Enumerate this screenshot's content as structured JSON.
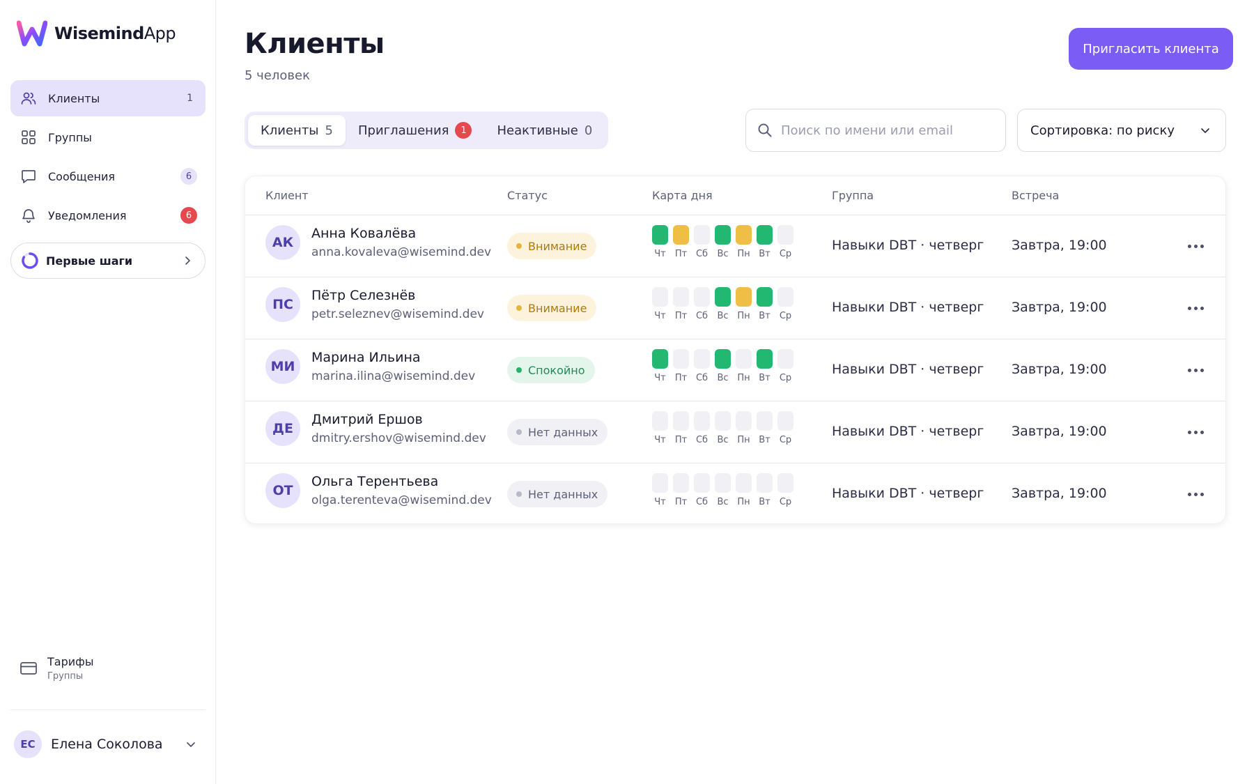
{
  "app": {
    "name_bold": "Wisemind",
    "name_light": "App"
  },
  "sidebar": {
    "items": [
      {
        "label": "Клиенты",
        "count": "1",
        "icon": "users-icon",
        "active": true
      },
      {
        "label": "Группы",
        "icon": "grid-icon"
      },
      {
        "label": "Сообщения",
        "badge": "6",
        "badge_style": "soft",
        "icon": "chat-icon"
      },
      {
        "label": "Уведомления",
        "badge": "6",
        "badge_style": "red",
        "icon": "bell-icon"
      }
    ],
    "first_steps": "Первые шаги",
    "tariffs": {
      "title": "Тарифы",
      "subtitle": "Группы"
    },
    "user": {
      "initials": "ЕС",
      "name": "Елена Соколова"
    }
  },
  "header": {
    "title": "Клиенты",
    "subtitle": "5 человек",
    "invite_label": "Пригласить клиента"
  },
  "tabs": [
    {
      "label": "Клиенты",
      "count": "5"
    },
    {
      "label": "Приглашения",
      "badge": "1"
    },
    {
      "label": "Неактивные",
      "count": "0"
    }
  ],
  "search": {
    "placeholder": "Поиск по имени или email"
  },
  "sort": {
    "label": "Сортировка: по риску"
  },
  "table": {
    "columns": [
      "Клиент",
      "Статус",
      "Карта дня",
      "Группа",
      "Встреча"
    ],
    "day_labels": [
      "Чт",
      "Пт",
      "Сб",
      "Вс",
      "Пн",
      "Вт",
      "Ср"
    ],
    "rows": [
      {
        "initials": "АК",
        "name": "Анна Ковалёва",
        "email": "anna.kovaleva@wisemind.dev",
        "status": "Внимание",
        "status_kind": "attention",
        "days": [
          "g",
          "y",
          "e",
          "g",
          "y",
          "g",
          "e"
        ],
        "group": "Навыки DBT · четверг",
        "meeting": "Завтра, 19:00"
      },
      {
        "initials": "ПС",
        "name": "Пётр Селезнёв",
        "email": "petr.seleznev@wisemind.dev",
        "status": "Внимание",
        "status_kind": "attention",
        "days": [
          "e",
          "e",
          "e",
          "g",
          "y",
          "g",
          "e"
        ],
        "group": "Навыки DBT · четверг",
        "meeting": "Завтра, 19:00"
      },
      {
        "initials": "МИ",
        "name": "Марина Ильина",
        "email": "marina.ilina@wisemind.dev",
        "status": "Спокойно",
        "status_kind": "calm",
        "days": [
          "g",
          "e",
          "e",
          "g",
          "e",
          "g",
          "e"
        ],
        "group": "Навыки DBT · четверг",
        "meeting": "Завтра, 19:00"
      },
      {
        "initials": "ДЕ",
        "name": "Дмитрий Ершов",
        "email": "dmitry.ershov@wisemind.dev",
        "status": "Нет данных",
        "status_kind": "nodata",
        "days": [
          "e",
          "e",
          "e",
          "e",
          "e",
          "e",
          "e"
        ],
        "group": "Навыки DBT · четверг",
        "meeting": "Завтра, 19:00"
      },
      {
        "initials": "ОТ",
        "name": "Ольга Терентьева",
        "email": "olga.terenteva@wisemind.dev",
        "status": "Нет данных",
        "status_kind": "nodata",
        "days": [
          "e",
          "e",
          "e",
          "e",
          "e",
          "e",
          "e"
        ],
        "group": "Навыки DBT · четверг",
        "meeting": "Завтра, 19:00"
      }
    ]
  },
  "colors": {
    "accent": "#7b5cf5",
    "accent_soft": "#e7e2fb",
    "good": "#22b871",
    "warn": "#eebe45",
    "danger": "#e5484d"
  }
}
